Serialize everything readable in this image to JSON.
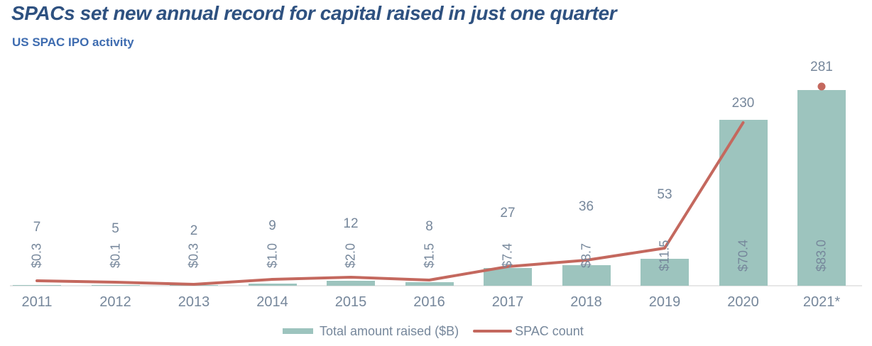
{
  "header": {
    "title": "SPACs set new annual record for capital raised in just one quarter",
    "subtitle": "US SPAC IPO activity"
  },
  "legend": {
    "bar_label": "Total amount raised ($B)",
    "line_label": "SPAC count"
  },
  "colors": {
    "bar": "#9dc4be",
    "line": "#c4685e",
    "title": "#2e5180",
    "subtitle": "#3e6cb0",
    "value_labels": "#76879b",
    "axis_line": "#e7e7e7"
  },
  "chart_data": {
    "type": "bar",
    "subtype": "combo-bar-line",
    "title": "SPACs set new annual record for capital raised in just one quarter",
    "subtitle": "US SPAC IPO activity",
    "categories": [
      "2011",
      "2012",
      "2013",
      "2014",
      "2015",
      "2016",
      "2017",
      "2018",
      "2019",
      "2020",
      "2021*"
    ],
    "series": [
      {
        "name": "Total amount raised ($B)",
        "type": "bar",
        "values": [
          0.3,
          0.1,
          0.3,
          1.0,
          2.0,
          1.5,
          7.4,
          8.7,
          11.5,
          70.4,
          83.0
        ],
        "data_labels": [
          "$0.3",
          "$0.1",
          "$0.3",
          "$1.0",
          "$2.0",
          "$1.5",
          "$7.4",
          "$8.7",
          "$11.5",
          "$70.4",
          "$83.0"
        ],
        "color": "#9dc4be",
        "axis_range": [
          0,
          85
        ]
      },
      {
        "name": "SPAC count",
        "type": "line",
        "values": [
          7,
          5,
          2,
          9,
          12,
          8,
          27,
          36,
          53,
          230,
          281
        ],
        "data_labels": [
          "7",
          "5",
          "2",
          "9",
          "12",
          "8",
          "27",
          "36",
          "53",
          "230",
          "281"
        ],
        "color": "#c4685e",
        "axis_range": [
          0,
          285
        ],
        "note": "line drawn 2011-2020; 2021* shown as isolated dot marker"
      }
    ],
    "xlabel": "",
    "ylabel": "",
    "grid": false,
    "legend_position": "bottom-center"
  }
}
